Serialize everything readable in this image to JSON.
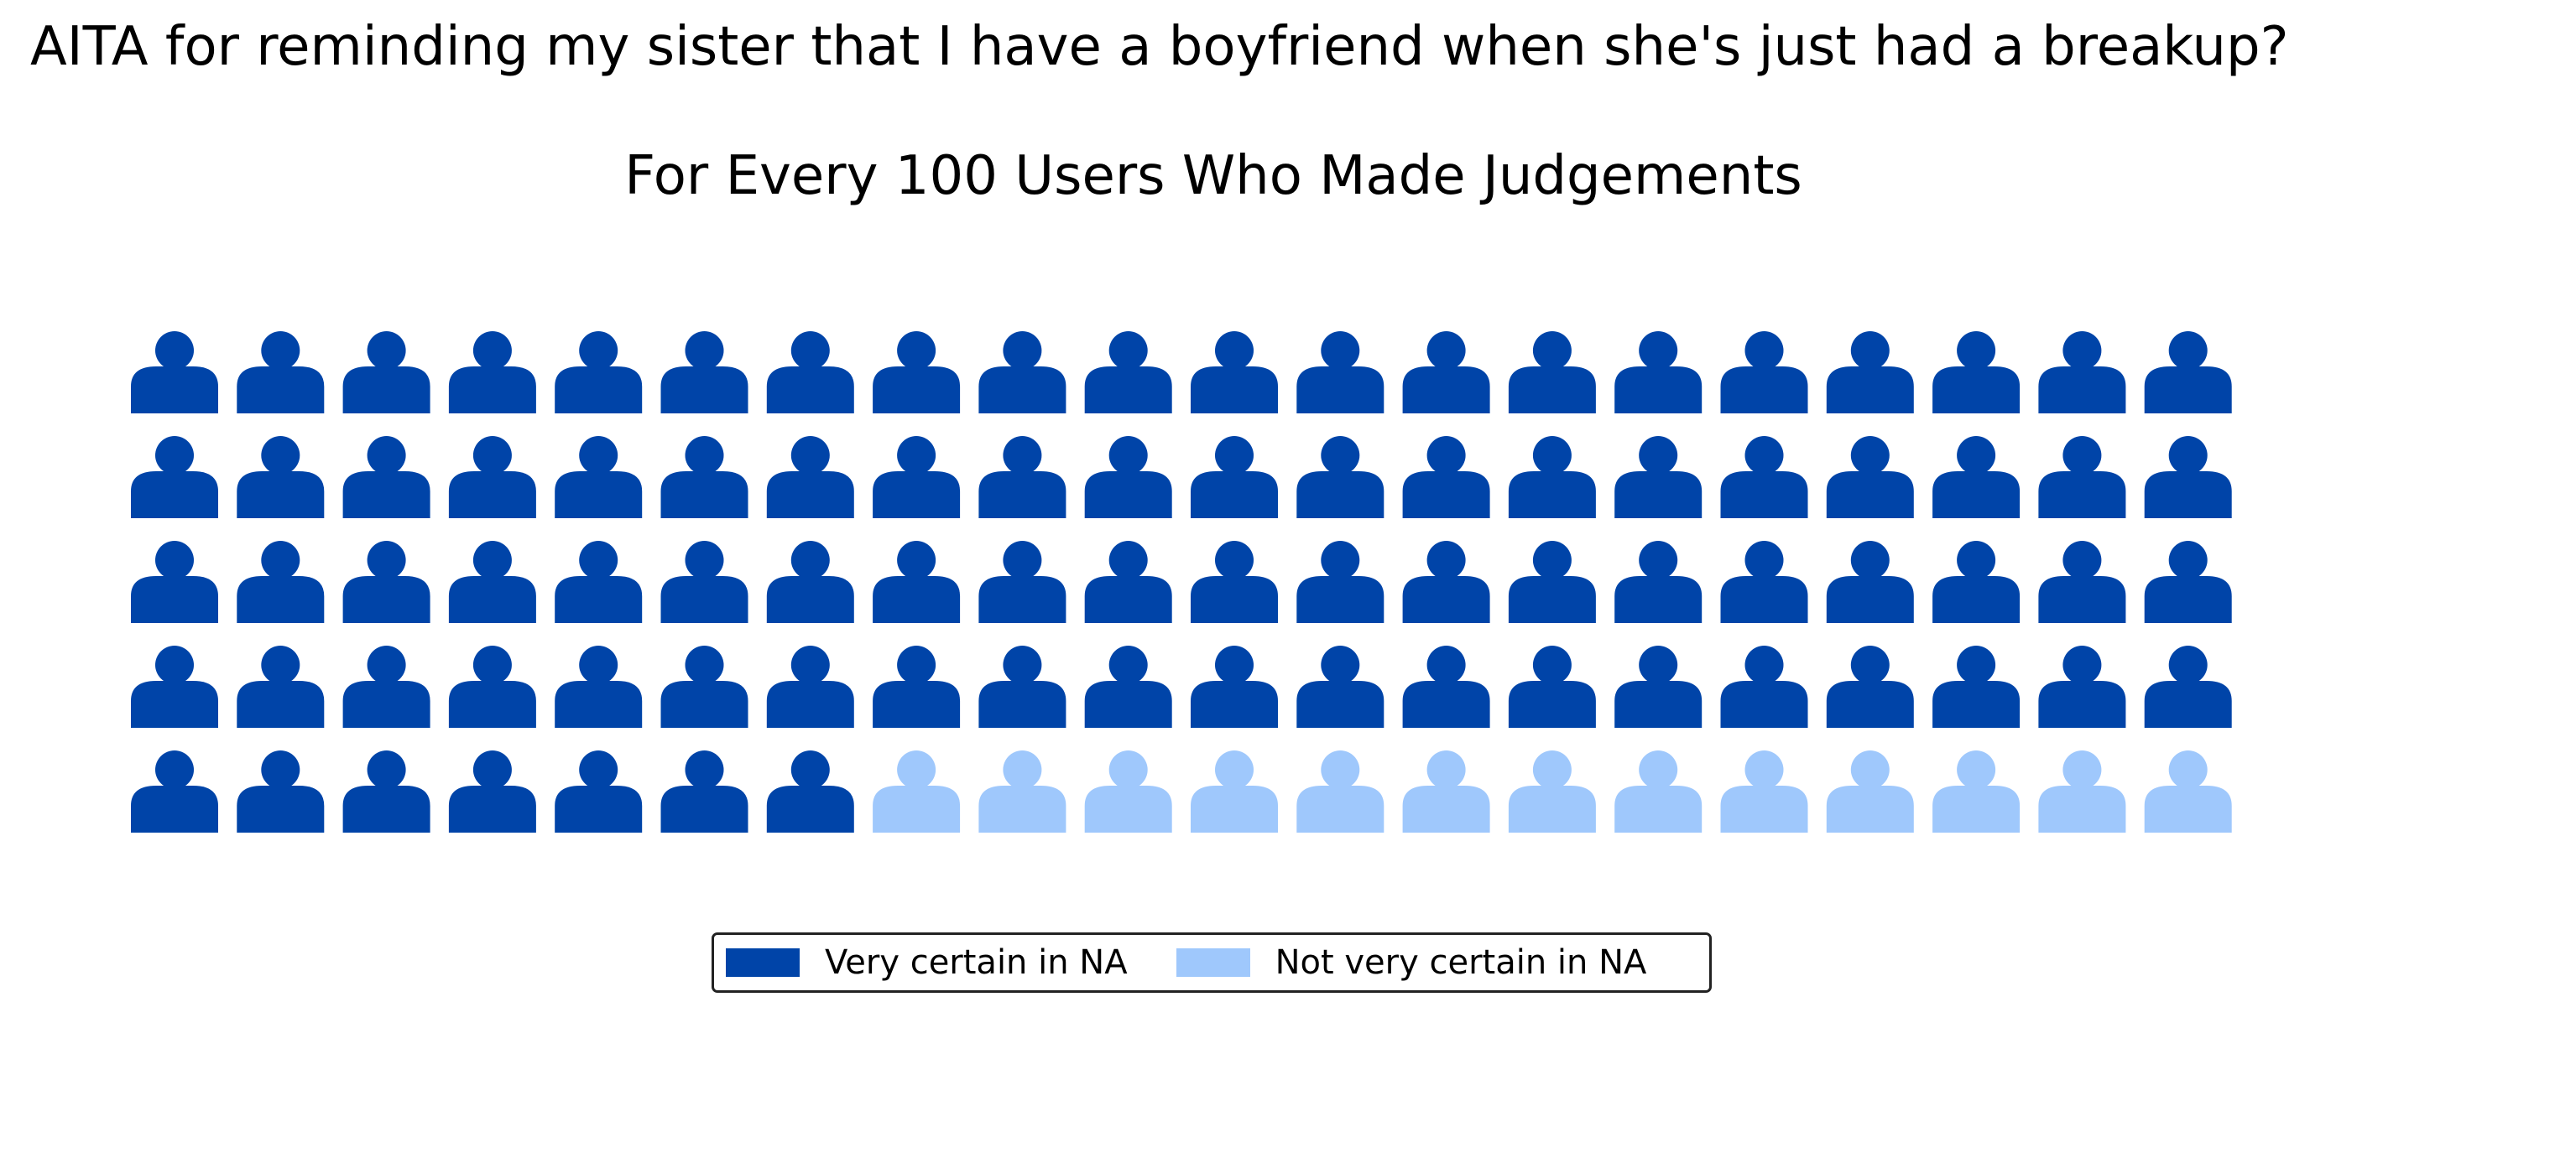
{
  "header": {
    "title": "AITA for reminding my sister that I have a boyfriend when she's just had a breakup?"
  },
  "chart_data": {
    "type": "waffle",
    "title": "For Every 100 Users Who Made Judgements",
    "icon": "person-icon",
    "rows": 5,
    "columns": 20,
    "total": 100,
    "series": [
      {
        "name": "Very certain in NA",
        "value": 87,
        "color": "#0044a8"
      },
      {
        "name": "Not very certain in NA",
        "value": 13,
        "color": "#9fc8fc"
      }
    ],
    "legend_position": "bottom-center"
  }
}
